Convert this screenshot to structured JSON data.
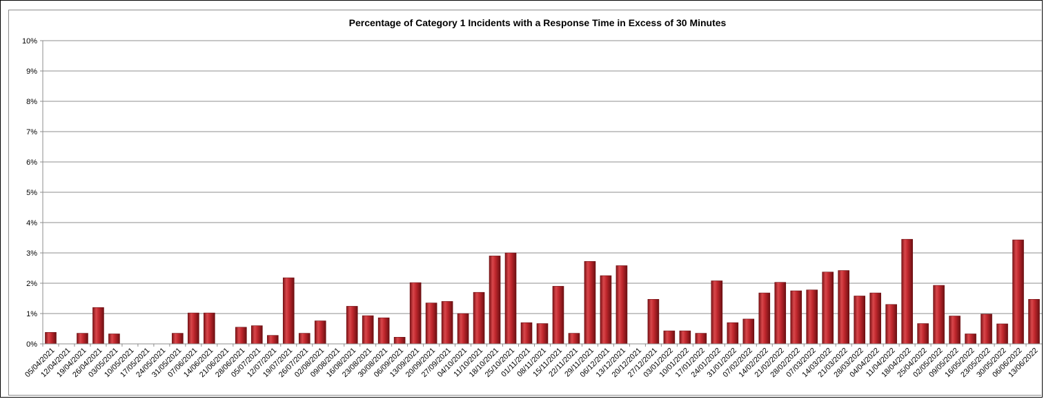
{
  "chart_data": {
    "type": "bar",
    "title": "Percentage of Category 1 Incidents with a Response Time in Excess of 30 Minutes",
    "xlabel": "",
    "ylabel": "",
    "ylim": [
      0,
      10
    ],
    "y_ticks": [
      "0%",
      "1%",
      "2%",
      "3%",
      "4%",
      "5%",
      "6%",
      "7%",
      "8%",
      "9%",
      "10%"
    ],
    "grid": true,
    "legend": "none",
    "bar_color": "#c0272d",
    "categories": [
      "05/04/2021",
      "12/04/2021",
      "19/04/2021",
      "26/04/2021",
      "03/05/2021",
      "10/05/2021",
      "17/05/2021",
      "24/05/2021",
      "31/05/2021",
      "07/06/2021",
      "14/06/2021",
      "21/06/2021",
      "28/06/2021",
      "05/07/2021",
      "12/07/2021",
      "19/07/2021",
      "26/07/2021",
      "02/08/2021",
      "09/08/2021",
      "16/08/2021",
      "23/08/2021",
      "30/08/2021",
      "06/09/2021",
      "13/09/2021",
      "20/09/2021",
      "27/09/2021",
      "04/10/2021",
      "11/10/2021",
      "18/10/2021",
      "25/10/2021",
      "01/11/2021",
      "08/11/2021",
      "15/11/2021",
      "22/11/2021",
      "29/11/2021",
      "06/12/2021",
      "13/12/2021",
      "20/12/2021",
      "27/12/2021",
      "03/01/2022",
      "10/01/2022",
      "17/01/2022",
      "24/01/2022",
      "31/01/2022",
      "07/02/2022",
      "14/02/2022",
      "21/02/2022",
      "28/02/2022",
      "07/03/2022",
      "14/03/2022",
      "21/03/2022",
      "28/03/2022",
      "04/04/2022",
      "11/04/2022",
      "18/04/2022",
      "25/04/2022",
      "02/05/2022",
      "09/05/2022",
      "16/05/2022",
      "23/05/2022",
      "30/05/2022",
      "06/06/2022",
      "13/06/2022"
    ],
    "values": [
      0.38,
      0,
      0.35,
      1.2,
      0.33,
      0,
      0,
      0,
      0.35,
      1.02,
      1.02,
      0,
      0.55,
      0.6,
      0.28,
      2.18,
      0.35,
      0.76,
      0,
      1.24,
      0.93,
      0.86,
      0.22,
      2.02,
      1.35,
      1.4,
      1.0,
      1.7,
      2.9,
      3.0,
      0.7,
      0.67,
      1.9,
      0.35,
      2.72,
      2.25,
      2.58,
      0,
      1.47,
      0.43,
      0.43,
      0.35,
      2.08,
      0.7,
      0.82,
      1.68,
      2.03,
      1.75,
      1.78,
      2.37,
      2.42,
      1.58,
      1.68,
      1.3,
      3.45,
      0.67,
      1.93,
      0.92,
      0.33,
      0.98,
      0.66,
      3.43,
      1.47
    ]
  }
}
